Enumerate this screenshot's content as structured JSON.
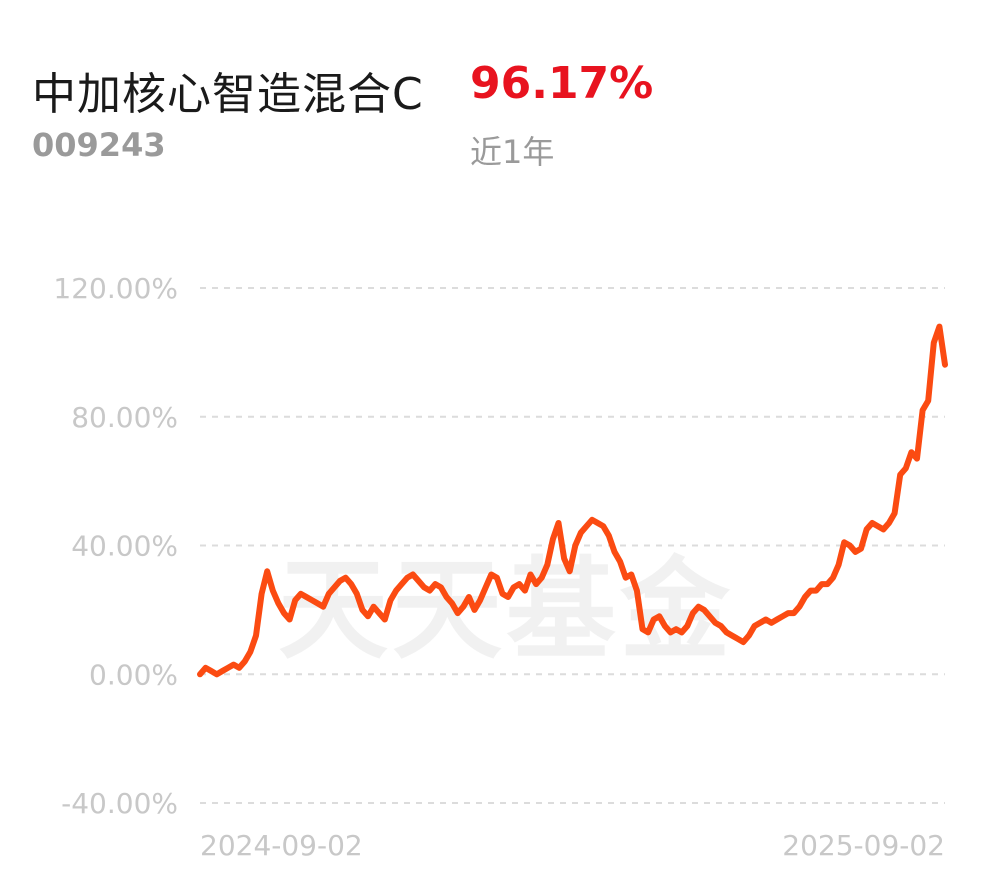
{
  "header": {
    "fund_name": "中加核心智造混合C",
    "fund_code": "009243",
    "return_value": "96.17%",
    "period": "近1年",
    "return_color": "#e8131f"
  },
  "watermark": "天天基金",
  "chart_data": {
    "type": "line",
    "ylim": [
      -40,
      120
    ],
    "y_ticks": [
      "120.00%",
      "80.00%",
      "40.00%",
      "0.00%",
      "-40.00%"
    ],
    "x_tick_labels": [
      "2024-09-02",
      "2025-09-02"
    ],
    "grid": true,
    "line_color": "#fb4b12",
    "series": [
      {
        "values": [
          0,
          2,
          1,
          0,
          1,
          2,
          3,
          2,
          4,
          7,
          12,
          25,
          32,
          26,
          22,
          19,
          17,
          23,
          25,
          24,
          23,
          22,
          21,
          25,
          27,
          29,
          30,
          28,
          25,
          20,
          18,
          21,
          19,
          17,
          23,
          26,
          28,
          30,
          31,
          29,
          27,
          26,
          28,
          27,
          24,
          22,
          19,
          21,
          24,
          20,
          23,
          27,
          31,
          30,
          25,
          24,
          27,
          28,
          26,
          31,
          28,
          30,
          34,
          42,
          47,
          36,
          32,
          40,
          44,
          46,
          48,
          47,
          46,
          43,
          38,
          35,
          30,
          31,
          26,
          14,
          13,
          17,
          18,
          15,
          13,
          14,
          13,
          15,
          19,
          21,
          20,
          18,
          16,
          15,
          13,
          12,
          11,
          10,
          12,
          15,
          16,
          17,
          16,
          17,
          18,
          19,
          19,
          21,
          24,
          26,
          26,
          28,
          28,
          30,
          34,
          41,
          40,
          38,
          39,
          45,
          47,
          46,
          45,
          47,
          50,
          62,
          64,
          69,
          67,
          82,
          85,
          103,
          108,
          96.17
        ]
      }
    ]
  }
}
